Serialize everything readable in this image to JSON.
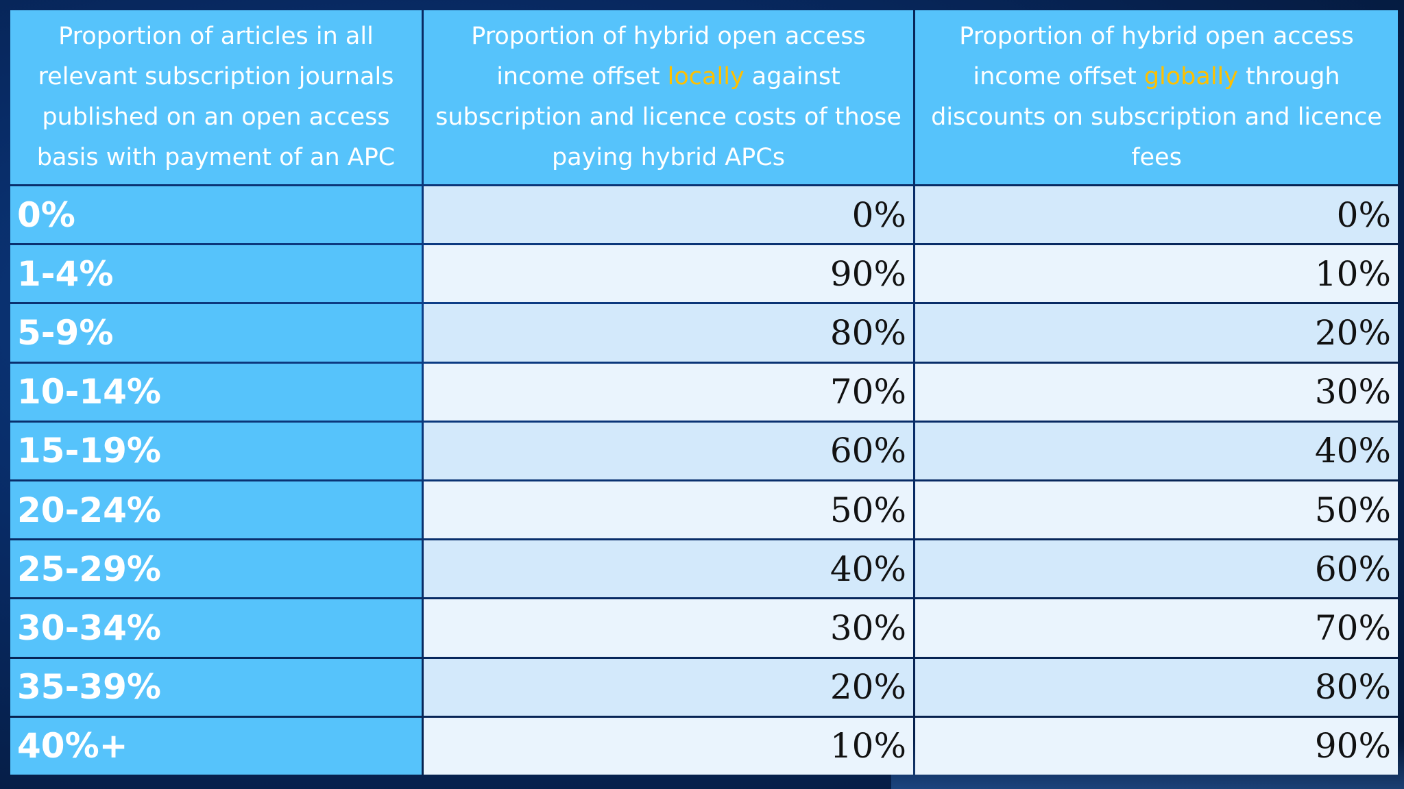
{
  "table": {
    "headers": {
      "col1": "Proportion of articles in all relevant subscription journals published on an open access basis with payment of an APC",
      "col2": {
        "before": "Proportion of hybrid open access income offset ",
        "highlight": "locally",
        "after": " against subscription and licence costs of those paying hybrid APCs"
      },
      "col3": {
        "before": "Proportion of hybrid open access income offset ",
        "highlight": "globally",
        "after": " through discounts on subscription and licence fees"
      }
    },
    "rows": [
      {
        "band": "0%",
        "local": "0%",
        "global": "0%"
      },
      {
        "band": "1-4%",
        "local": "90%",
        "global": "10%"
      },
      {
        "band": "5-9%",
        "local": "80%",
        "global": "20%"
      },
      {
        "band": "10-14%",
        "local": "70%",
        "global": "30%"
      },
      {
        "band": "15-19%",
        "local": "60%",
        "global": "40%"
      },
      {
        "band": "20-24%",
        "local": "50%",
        "global": "50%"
      },
      {
        "band": "25-29%",
        "local": "40%",
        "global": "60%"
      },
      {
        "band": "30-34%",
        "local": "30%",
        "global": "70%"
      },
      {
        "band": "35-39%",
        "local": "20%",
        "global": "80%"
      },
      {
        "band": "40%+",
        "local": "10%",
        "global": "90%"
      }
    ],
    "colors": {
      "header_bg": "#56c3fb",
      "label_bg": "#56c3fb",
      "highlight_text": "#ffc000",
      "row_band_a": "#d3e9fb",
      "row_band_b": "#eaf4fd",
      "slide_bg": "#082a63"
    }
  }
}
